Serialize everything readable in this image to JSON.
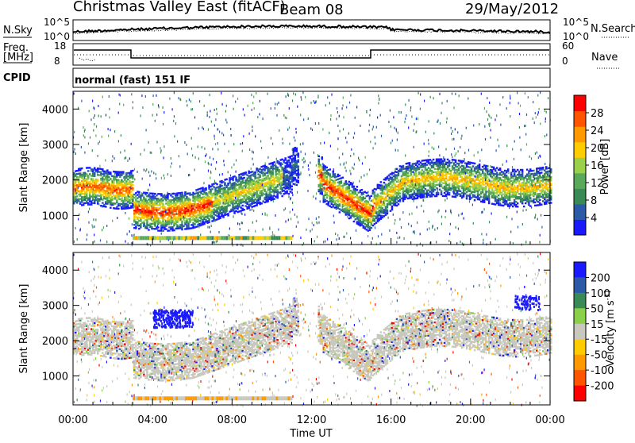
{
  "header": {
    "title": "Christmas Valley East (fitACF)",
    "beam": "Beam 08",
    "date": "29/May/2012"
  },
  "noise_panel": {
    "left_label": "N.Sky",
    "right_label": "N.Search",
    "left_ticks": [
      "10^5",
      "10^0"
    ],
    "right_ticks": [
      "10^5",
      "10^0"
    ]
  },
  "freq_panel": {
    "left_label_1": "Freq.",
    "left_label_2": "[MHz]",
    "right_label": "Nave",
    "left_ticks": [
      "18",
      "8"
    ],
    "right_ticks": [
      "60",
      "0"
    ]
  },
  "cpid": {
    "label": "CPID",
    "program": "normal (fast) 151 IF"
  },
  "colors": {
    "power_scale": [
      "#1a1aff",
      "#2d5aa8",
      "#3a8a55",
      "#5aa85a",
      "#9ad04a",
      "#ffcc00",
      "#ff9900",
      "#ff5500",
      "#ff0000"
    ],
    "velocity_scale": [
      "#1a1aff",
      "#2d5aa8",
      "#3a8a55",
      "#8ad04a",
      "#c8c8be",
      "#ffcc00",
      "#ff9900",
      "#ff5500",
      "#ff0000"
    ],
    "ground_scatter": "#c8c8be"
  },
  "chart_data": [
    {
      "type": "heatmap",
      "title": "Power",
      "ylabel": "Slant Range [km]",
      "ylim": [
        180,
        4500
      ],
      "y_ticks": [
        "1000",
        "2000",
        "3000",
        "4000"
      ],
      "colorbar_label": "Power [dB]",
      "colorbar_ticks": [
        "4",
        "8",
        "12",
        "16",
        "20",
        "24",
        "28"
      ],
      "colorbar_range": [
        0,
        32
      ],
      "features": [
        {
          "x": [
            0.0,
            3.0
          ],
          "y": [
            1500,
            2200
          ],
          "peak_db": 28
        },
        {
          "x": [
            3.0,
            7.5
          ],
          "y": [
            900,
            1400
          ],
          "peak_db": 30
        },
        {
          "x": [
            7.5,
            11.0
          ],
          "y": [
            1500,
            2400
          ],
          "peak_db": 20
        },
        {
          "x": [
            12.5,
            15.0
          ],
          "y": [
            700,
            1800
          ],
          "peak_db": 30
        },
        {
          "x": [
            15.5,
            24.0
          ],
          "y": [
            1600,
            2500
          ],
          "peak_db": 24
        }
      ]
    },
    {
      "type": "heatmap",
      "title": "Velocity",
      "ylabel": "Slant Range [km]",
      "ylim": [
        180,
        4500
      ],
      "y_ticks": [
        "1000",
        "2000",
        "3000",
        "4000"
      ],
      "colorbar_label": "Velocity [m s^-1]",
      "colorbar_ticks": [
        "200",
        "100",
        "50",
        "15",
        "-15",
        "-50",
        "-100",
        "-200"
      ],
      "colorbar_range": [
        -250,
        250
      ],
      "x_ticks": [
        "00:00",
        "04:00",
        "08:00",
        "12:00",
        "16:00",
        "20:00",
        "00:00"
      ],
      "xlabel": "Time UT"
    }
  ]
}
